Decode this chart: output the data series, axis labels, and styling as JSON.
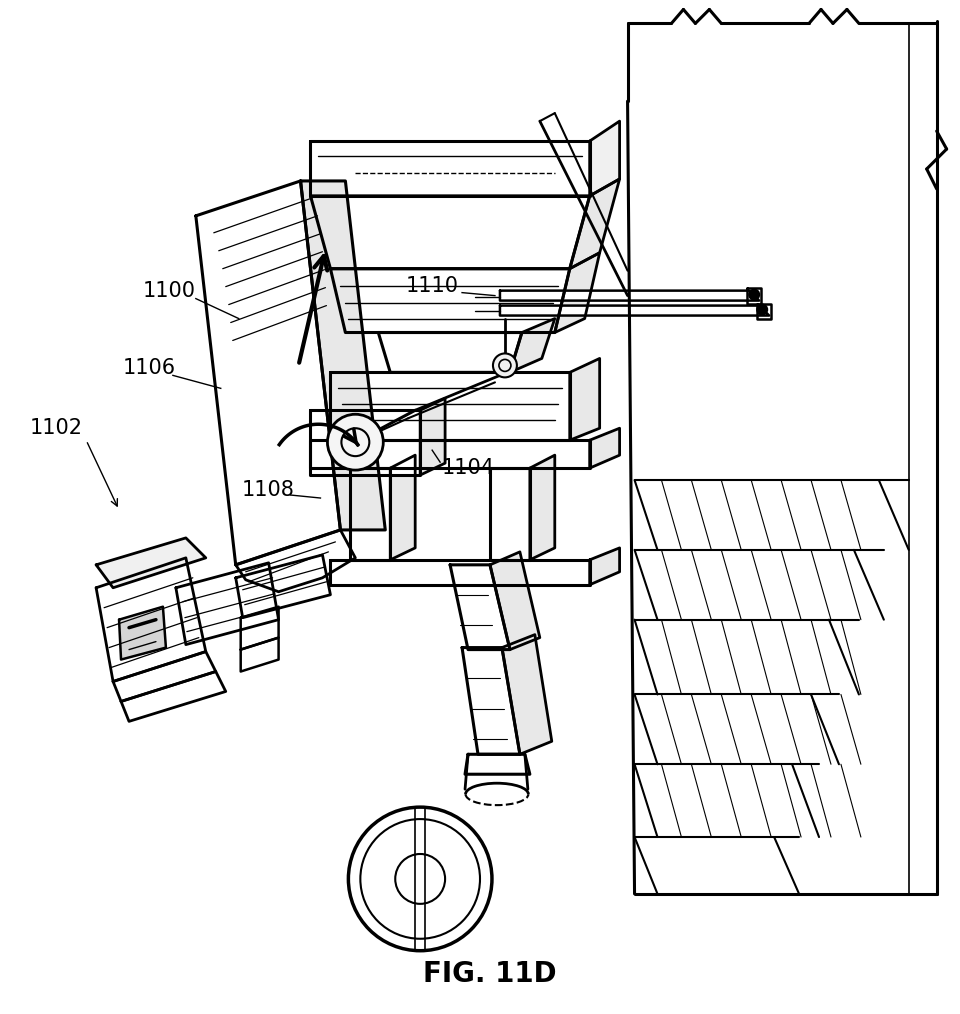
{
  "title": "FIG. 11D",
  "title_fontsize": 20,
  "title_fontweight": "bold",
  "background_color": "#ffffff",
  "line_color": "#000000",
  "figsize": [
    9.6,
    10.14
  ],
  "dpi": 100
}
